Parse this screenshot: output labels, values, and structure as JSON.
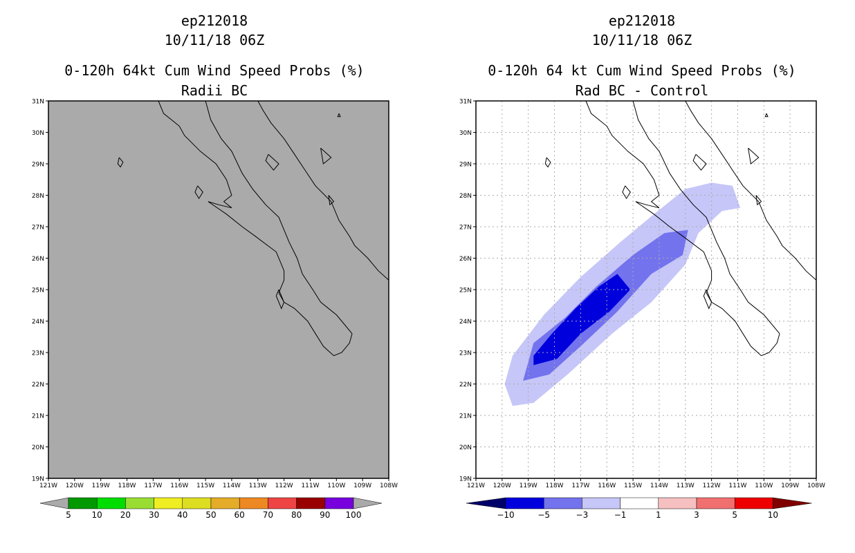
{
  "left_panel": {
    "storm_id": "ep212018",
    "datetime": "10/11/18 06Z",
    "title": "0-120h 64kt Cum Wind Speed Probs (%)",
    "subtitle": "Radii BC",
    "background_color": "#aaaaaa",
    "colorbar": {
      "colors": [
        "#009900",
        "#00dd00",
        "#99dd33",
        "#eeee22",
        "#dddd22",
        "#e5ac2a",
        "#ee8822",
        "#ee4444",
        "#990000",
        "#7700dd"
      ],
      "labels": [
        "5",
        "10",
        "20",
        "30",
        "40",
        "50",
        "60",
        "70",
        "80",
        "90",
        "100"
      ]
    }
  },
  "right_panel": {
    "storm_id": "ep212018",
    "datetime": "10/11/18 06Z",
    "title": "0-120h 64 kt Cum Wind Speed Probs (%)",
    "subtitle": "Rad BC - Control",
    "colorbar": {
      "colors": [
        "#0000dd",
        "#7373ee",
        "#c6c6f8",
        "#ffffff",
        "#f6c0c0",
        "#f07070",
        "#ee0000"
      ],
      "end_colors": [
        "#00006a",
        "#800000"
      ],
      "labels": [
        "-10",
        "-5",
        "-3",
        "-1",
        "1",
        "3",
        "5",
        "10"
      ]
    },
    "difference_colors": {
      "light": "#c6c6f8",
      "medium": "#7373ee",
      "dark": "#0000dd"
    }
  },
  "map": {
    "lat_labels": [
      "31N",
      "30N",
      "29N",
      "28N",
      "27N",
      "26N",
      "25N",
      "24N",
      "23N",
      "22N",
      "21N",
      "20N",
      "19N"
    ],
    "lon_labels": [
      "121W",
      "120W",
      "119W",
      "118W",
      "117W",
      "116W",
      "115W",
      "114W",
      "113W",
      "112W",
      "111W",
      "110W",
      "109W",
      "108W"
    ]
  }
}
